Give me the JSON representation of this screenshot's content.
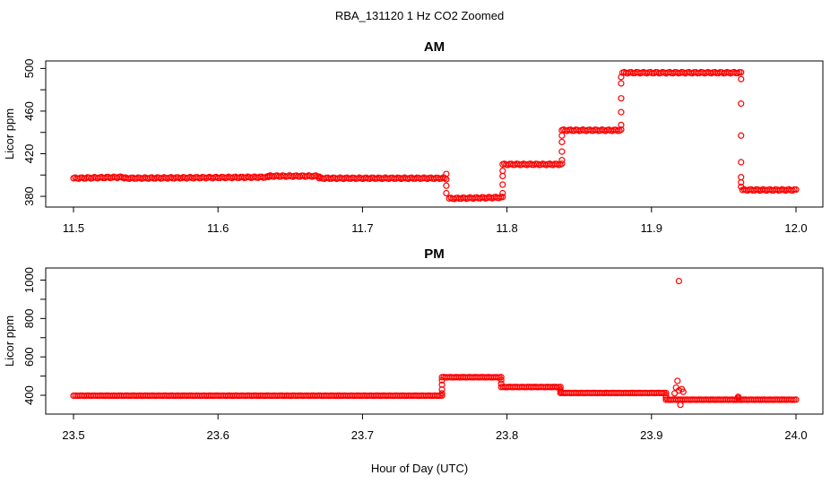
{
  "figure": {
    "title": "RBA_131120  1 Hz CO2 Zoomed",
    "xlabel": "Hour of Day (UTC)"
  },
  "colors": {
    "points": "#ff0000",
    "axis": "#000000"
  },
  "chart_data": [
    {
      "type": "scatter",
      "title": "AM",
      "xlabel": "",
      "ylabel": "Licor ppm",
      "xlim": [
        11.5,
        12.0
      ],
      "ylim": [
        375,
        502
      ],
      "xticks": [
        "11.5",
        "11.6",
        "11.7",
        "11.8",
        "11.9",
        "12.0"
      ],
      "yticks": [
        "380",
        "420",
        "460",
        "500"
      ],
      "grid": false,
      "series": [
        {
          "marker": "open-circle",
          "segments": [
            {
              "x": [
                11.5,
                11.535
              ],
              "y": [
                397,
                398
              ]
            },
            {
              "x": [
                11.535,
                11.635
              ],
              "y": [
                397,
                398
              ]
            },
            {
              "x": [
                11.635,
                11.67
              ],
              "y": [
                399,
                399
              ]
            },
            {
              "x": [
                11.67,
                11.757
              ],
              "y": [
                397,
                397
              ]
            },
            {
              "x": [
                11.76,
                11.797
              ],
              "y": [
                378,
                379
              ]
            },
            {
              "x": [
                11.797,
                11.838
              ],
              "y": [
                410,
                410
              ]
            },
            {
              "x": [
                11.838,
                11.879
              ],
              "y": [
                442,
                442
              ]
            },
            {
              "x": [
                11.88,
                11.962
              ],
              "y": [
                496,
                496
              ]
            },
            {
              "x": [
                11.963,
                12.0
              ],
              "y": [
                386,
                386
              ]
            }
          ],
          "transitions": [
            {
              "x": 11.758,
              "y": [
                401,
                396,
                390,
                383
              ]
            },
            {
              "x": 11.797,
              "y": [
                383,
                391,
                399,
                404
              ]
            },
            {
              "x": 11.838,
              "y": [
                414,
                422,
                431,
                437
              ]
            },
            {
              "x": 11.879,
              "y": [
                447,
                459,
                472,
                486,
                492
              ]
            },
            {
              "x": 11.962,
              "y": [
                490,
                467,
                437,
                412,
                398,
                393,
                389
              ]
            }
          ]
        }
      ]
    },
    {
      "type": "scatter",
      "title": "PM",
      "xlabel": "",
      "ylabel": "Licor ppm",
      "xlim": [
        23.5,
        24.0
      ],
      "ylim": [
        330,
        1035
      ],
      "xticks": [
        "23.5",
        "23.6",
        "23.7",
        "23.8",
        "23.9",
        "24.0"
      ],
      "yticks": [
        "400",
        "600",
        "800",
        "1000"
      ],
      "grid": false,
      "series": [
        {
          "marker": "open-circle",
          "segments": [
            {
              "x": [
                23.5,
                23.755
              ],
              "y": [
                398,
                398
              ]
            },
            {
              "x": [
                23.755,
                23.796
              ],
              "y": [
                494,
                494
              ]
            },
            {
              "x": [
                23.796,
                23.837
              ],
              "y": [
                443,
                443
              ]
            },
            {
              "x": [
                23.837,
                23.91
              ],
              "y": [
                412,
                412
              ]
            },
            {
              "x": [
                23.91,
                24.0
              ],
              "y": [
                377,
                377
              ]
            }
          ],
          "transitions": [
            {
              "x": 23.755,
              "y": [
                410,
                430,
                455,
                478
              ]
            },
            {
              "x": 23.796,
              "y": [
                480,
                460
              ]
            },
            {
              "x": 23.837,
              "y": [
                430,
                420
              ]
            },
            {
              "x": 23.91,
              "y": [
                400,
                388
              ]
            }
          ],
          "scatter": [
            {
              "x": 23.919,
              "y": 995
            },
            {
              "x": 23.918,
              "y": 475
            },
            {
              "x": 23.917,
              "y": 440
            },
            {
              "x": 23.919,
              "y": 425
            },
            {
              "x": 23.921,
              "y": 432
            },
            {
              "x": 23.922,
              "y": 418
            },
            {
              "x": 23.916,
              "y": 410
            },
            {
              "x": 23.92,
              "y": 350
            },
            {
              "x": 23.96,
              "y": 392
            },
            {
              "x": 23.96,
              "y": 385
            }
          ]
        }
      ]
    }
  ]
}
